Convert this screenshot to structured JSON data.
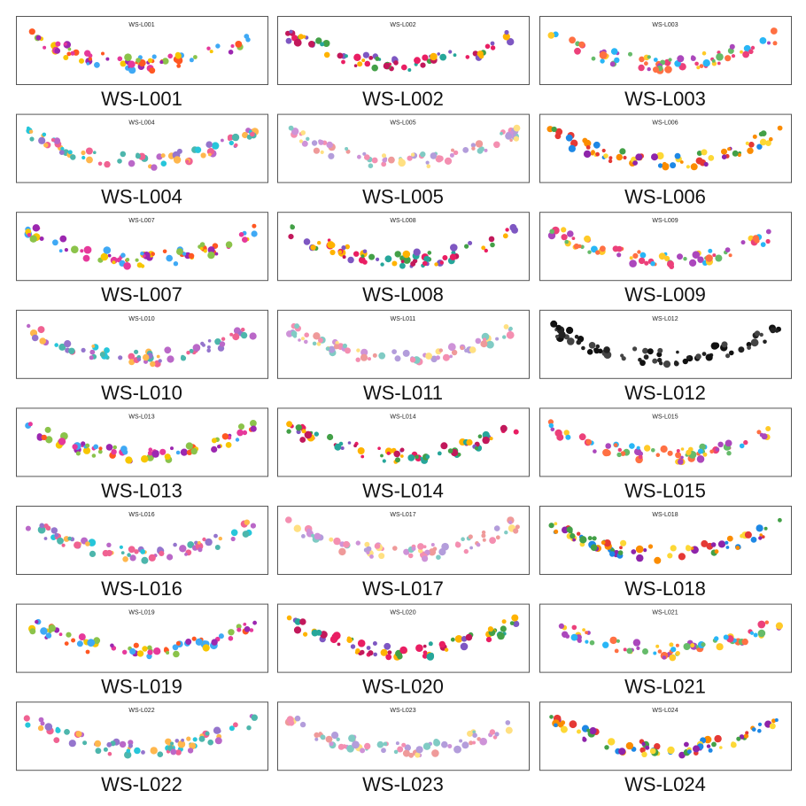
{
  "items": [
    "WS-L001",
    "WS-L002",
    "WS-L003",
    "WS-L004",
    "WS-L005",
    "WS-L006",
    "WS-L007",
    "WS-L008",
    "WS-L009",
    "WS-L010",
    "WS-L011",
    "WS-L012",
    "WS-L013",
    "WS-L014",
    "WS-L015",
    "WS-L016",
    "WS-L017",
    "WS-L018",
    "WS-L019",
    "WS-L020",
    "WS-L021",
    "WS-L022",
    "WS-L023",
    "WS-L024"
  ]
}
